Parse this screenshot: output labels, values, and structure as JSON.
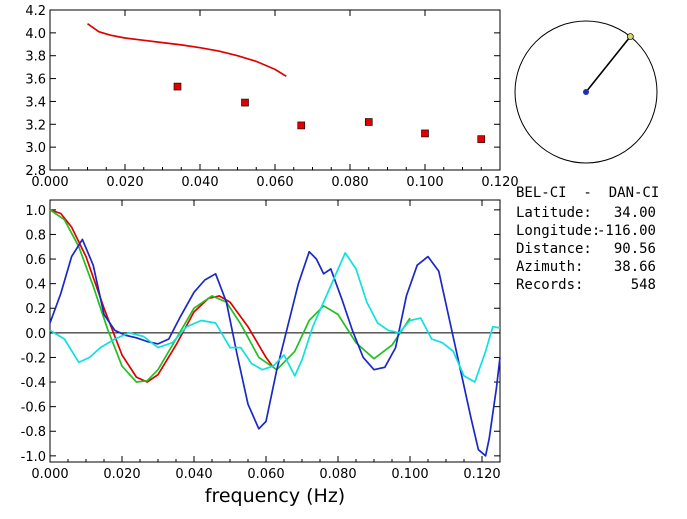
{
  "info": {
    "station_pair": "BEL-CI  -  DAN-CI",
    "rows": [
      {
        "label": "Latitude:",
        "value": "34.00"
      },
      {
        "label": "Longitude:",
        "value": "-116.00"
      },
      {
        "label": "Distance:",
        "value": "90.56"
      },
      {
        "label": "Azimuth:",
        "value": "38.66"
      },
      {
        "label": "Records:",
        "value": "548"
      }
    ]
  },
  "compass": {
    "azimuth_deg": 38.66,
    "colors": {
      "circle": "#000000",
      "needle": "#000000",
      "center_dot": "#1f2fb0",
      "tip_dot": "#d8d870"
    }
  },
  "chart_data": [
    {
      "type": "scatter",
      "panel": "top",
      "xlim": [
        0.0,
        0.12
      ],
      "ylim": [
        2.8,
        4.2
      ],
      "xticks": [
        "0.000",
        "0.020",
        "0.040",
        "0.060",
        "0.080",
        "0.100",
        "0.120"
      ],
      "yticks": [
        "2.8",
        "3.0",
        "3.2",
        "3.4",
        "3.6",
        "3.8",
        "4.0",
        "4.2"
      ],
      "series": [
        {
          "kind": "line",
          "color": "#e00000",
          "x": [
            0.01,
            0.013,
            0.016,
            0.02,
            0.025,
            0.03,
            0.035,
            0.04,
            0.045,
            0.05,
            0.055,
            0.06,
            0.063
          ],
          "y": [
            4.08,
            4.01,
            3.98,
            3.955,
            3.935,
            3.915,
            3.895,
            3.87,
            3.84,
            3.8,
            3.75,
            3.68,
            3.62
          ]
        },
        {
          "kind": "markers",
          "color": "#e00000",
          "x": [
            0.034,
            0.052,
            0.067,
            0.085,
            0.1,
            0.115
          ],
          "y": [
            3.53,
            3.39,
            3.19,
            3.22,
            3.12,
            3.07
          ]
        }
      ]
    },
    {
      "type": "line",
      "panel": "bottom",
      "xlabel": "frequency (Hz)",
      "xlim": [
        0.0,
        0.125
      ],
      "ylim": [
        -1.05,
        1.08
      ],
      "xticks": [
        "0.000",
        "0.020",
        "0.040",
        "0.060",
        "0.080",
        "0.100",
        "0.120"
      ],
      "yticks": [
        "-1.0",
        "-0.8",
        "-0.6",
        "-0.4",
        "-0.2",
        "0.0",
        "0.2",
        "0.4",
        "0.6",
        "0.8",
        "1.0"
      ],
      "series": [
        {
          "color": "#e00000",
          "x": [
            0.0,
            0.003,
            0.006,
            0.01,
            0.015,
            0.02,
            0.024,
            0.027,
            0.03,
            0.035,
            0.04,
            0.044,
            0.047,
            0.05,
            0.055,
            0.06,
            0.062
          ],
          "y": [
            1.0,
            0.97,
            0.86,
            0.62,
            0.2,
            -0.18,
            -0.36,
            -0.4,
            -0.34,
            -0.1,
            0.17,
            0.28,
            0.3,
            0.25,
            0.05,
            -0.2,
            -0.28
          ]
        },
        {
          "color": "#20c020",
          "x": [
            0.0,
            0.004,
            0.008,
            0.012,
            0.016,
            0.02,
            0.024,
            0.027,
            0.03,
            0.035,
            0.04,
            0.045,
            0.049,
            0.053,
            0.058,
            0.063,
            0.068,
            0.072,
            0.076,
            0.08,
            0.085,
            0.09,
            0.095,
            0.1
          ],
          "y": [
            1.0,
            0.92,
            0.7,
            0.38,
            0.03,
            -0.27,
            -0.4,
            -0.39,
            -0.3,
            -0.05,
            0.2,
            0.3,
            0.25,
            0.07,
            -0.2,
            -0.3,
            -0.15,
            0.1,
            0.22,
            0.15,
            -0.08,
            -0.21,
            -0.1,
            0.12
          ]
        },
        {
          "color": "#1a28c8",
          "x": [
            0.0,
            0.003,
            0.006,
            0.009,
            0.012,
            0.015,
            0.018,
            0.021,
            0.024,
            0.027,
            0.03,
            0.033,
            0.036,
            0.04,
            0.043,
            0.046,
            0.049,
            0.052,
            0.055,
            0.058,
            0.06,
            0.063,
            0.066,
            0.069,
            0.072,
            0.074,
            0.076,
            0.078,
            0.081,
            0.084,
            0.087,
            0.09,
            0.093,
            0.096,
            0.099,
            0.102,
            0.105,
            0.108,
            0.111,
            0.114,
            0.117,
            0.119,
            0.121,
            0.122,
            0.124,
            0.125
          ],
          "y": [
            0.08,
            0.32,
            0.62,
            0.76,
            0.55,
            0.15,
            0.02,
            -0.02,
            -0.04,
            -0.07,
            -0.09,
            -0.05,
            0.12,
            0.33,
            0.43,
            0.48,
            0.25,
            -0.18,
            -0.58,
            -0.78,
            -0.72,
            -0.3,
            0.05,
            0.4,
            0.66,
            0.6,
            0.48,
            0.52,
            0.28,
            0.02,
            -0.2,
            -0.3,
            -0.28,
            -0.12,
            0.3,
            0.55,
            0.62,
            0.5,
            0.1,
            -0.3,
            -0.7,
            -0.95,
            -1.0,
            -0.86,
            -0.45,
            -0.2
          ]
        },
        {
          "color": "#10e0e0",
          "x": [
            0.0,
            0.004,
            0.008,
            0.011,
            0.014,
            0.018,
            0.022,
            0.026,
            0.03,
            0.034,
            0.038,
            0.042,
            0.046,
            0.05,
            0.053,
            0.056,
            0.059,
            0.062,
            0.065,
            0.068,
            0.07,
            0.073,
            0.076,
            0.079,
            0.082,
            0.085,
            0.088,
            0.091,
            0.094,
            0.097,
            0.1,
            0.103,
            0.106,
            0.109,
            0.112,
            0.115,
            0.118,
            0.121,
            0.123,
            0.125
          ],
          "y": [
            0.02,
            -0.05,
            -0.24,
            -0.2,
            -0.12,
            -0.05,
            0.0,
            -0.03,
            -0.12,
            -0.08,
            0.05,
            0.1,
            0.08,
            -0.12,
            -0.12,
            -0.25,
            -0.3,
            -0.27,
            -0.18,
            -0.35,
            -0.22,
            0.05,
            0.25,
            0.45,
            0.65,
            0.52,
            0.25,
            0.08,
            0.02,
            0.0,
            0.1,
            0.12,
            -0.05,
            -0.08,
            -0.15,
            -0.35,
            -0.4,
            -0.15,
            0.05,
            0.04
          ]
        }
      ]
    }
  ]
}
